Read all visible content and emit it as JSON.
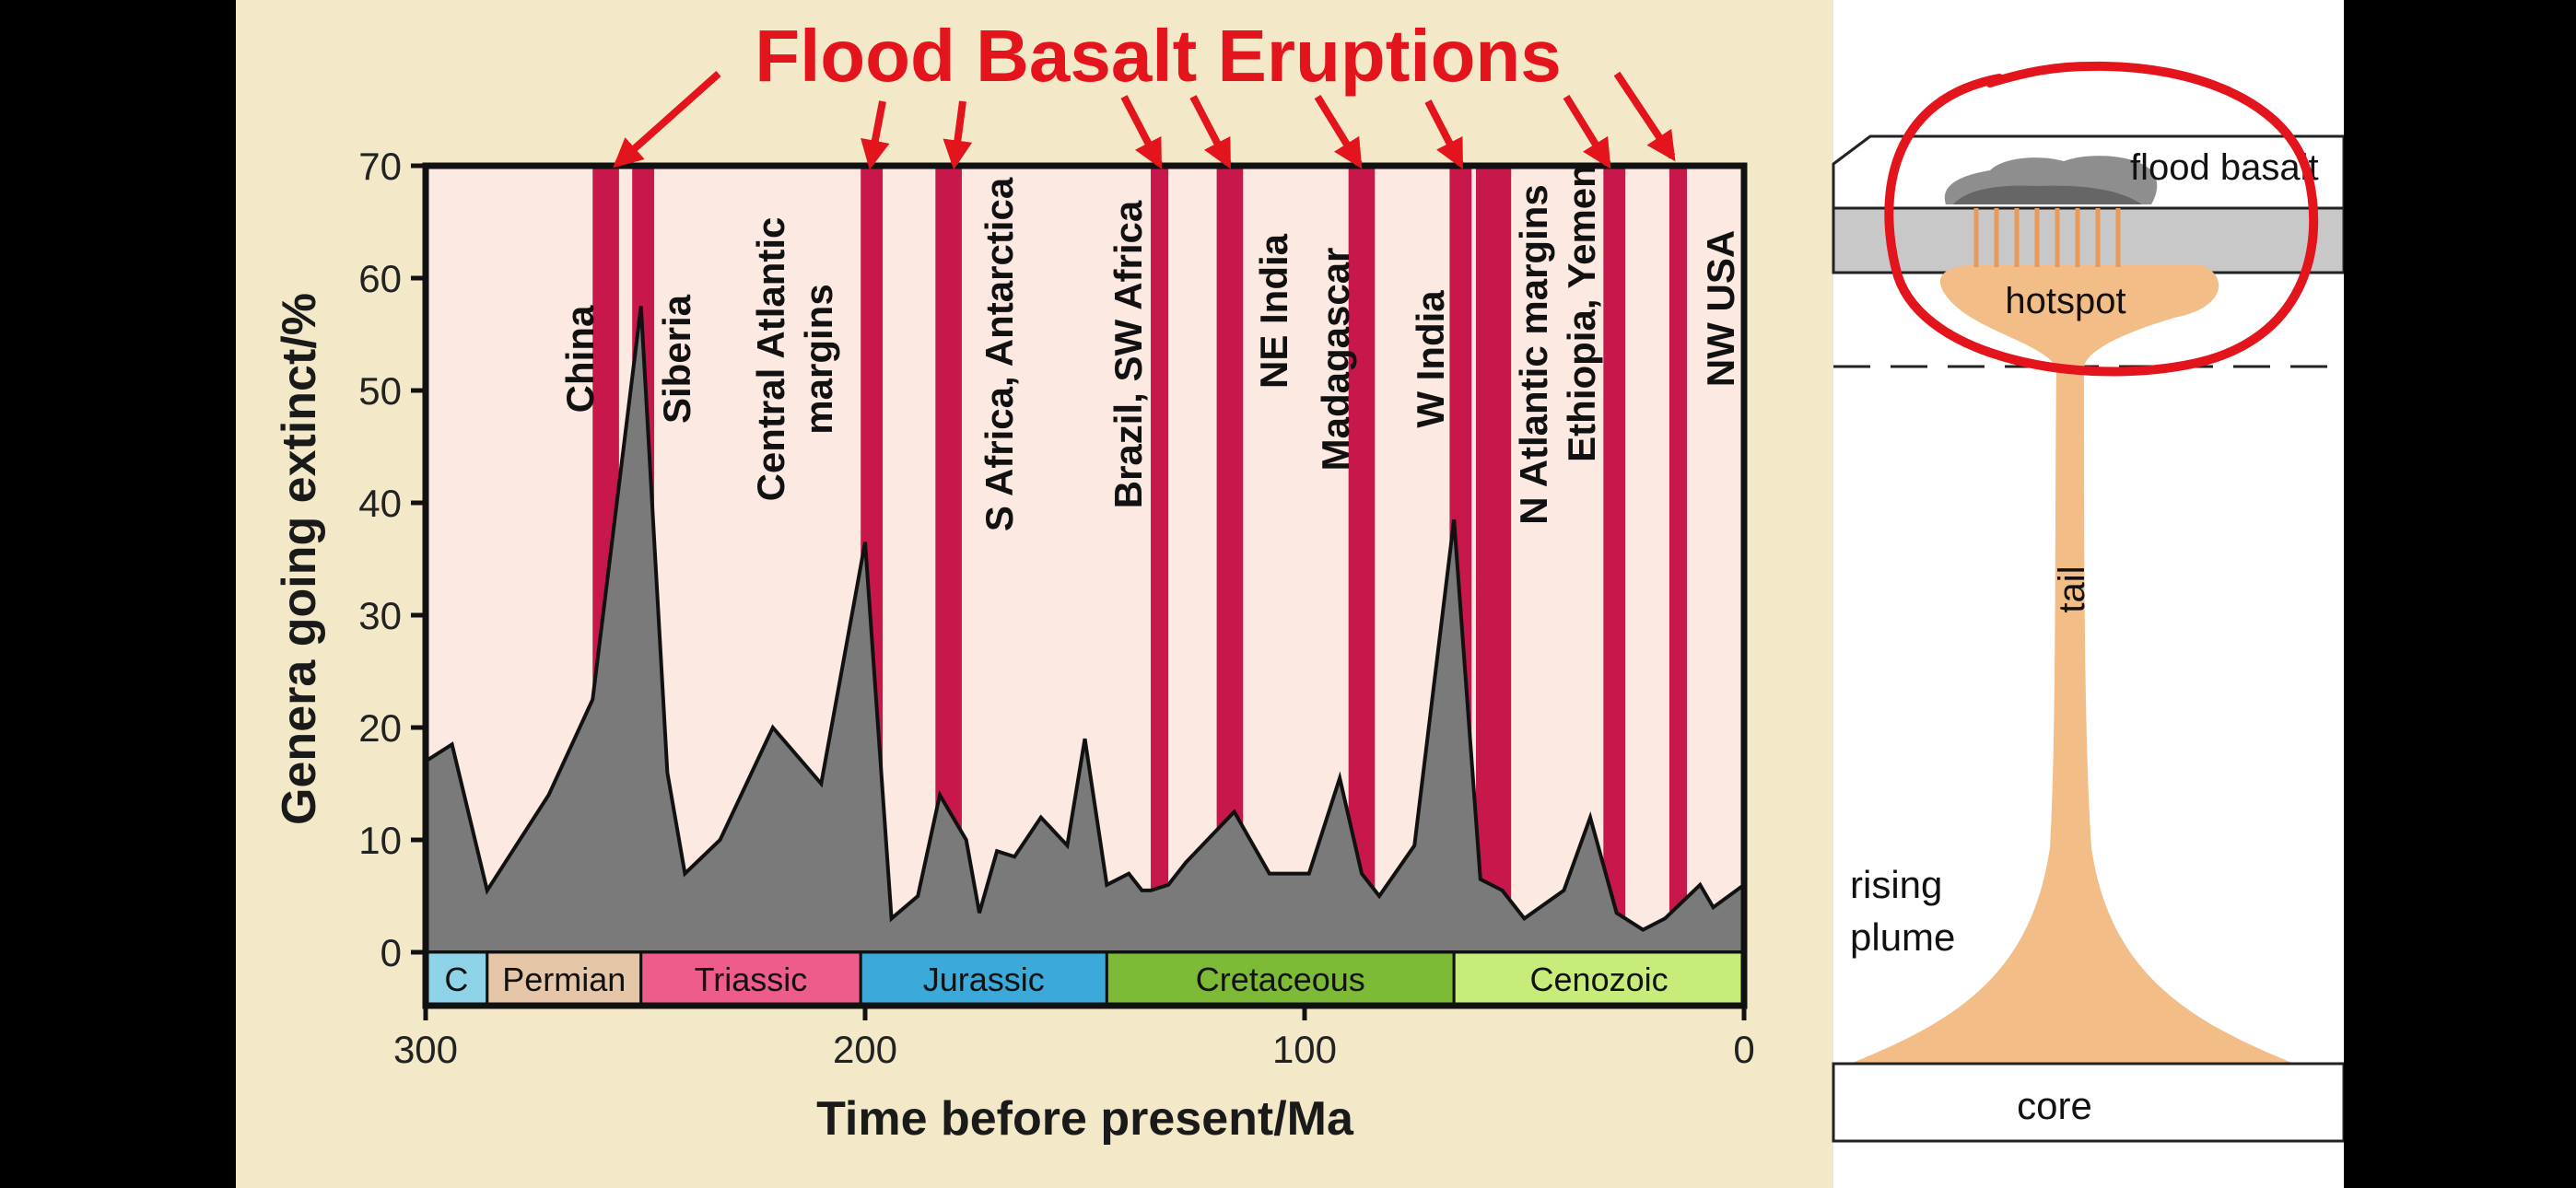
{
  "heading": "Flood Basalt Eruptions",
  "colors": {
    "panel_bg": "#f3e9c9",
    "plot_bg": "#fbe9e2",
    "extinction_fill": "#7a7a7a",
    "eruption_band": "#c8174b",
    "heading_red": "#e3141b",
    "plume": "#f3bd88",
    "lithosphere": "#c8c8c8"
  },
  "chart_data": {
    "type": "area",
    "xlabel": "Time before present/Ma",
    "ylabel": "Genera going extinct/%",
    "xlim": [
      300,
      0
    ],
    "ylim": [
      0,
      70
    ],
    "x_ticks": [
      300,
      200,
      100,
      0
    ],
    "y_ticks": [
      0,
      10,
      20,
      30,
      40,
      50,
      60,
      70
    ],
    "grid": false,
    "series": [
      {
        "x": [
          300,
          294,
          286,
          272,
          262,
          251,
          245,
          241,
          233,
          221,
          210,
          200,
          194,
          188,
          183,
          177,
          174,
          170,
          166,
          160,
          154,
          150,
          145,
          140,
          137,
          135,
          131,
          127,
          116,
          108,
          99,
          92,
          87,
          83,
          75,
          66,
          60,
          55,
          50,
          41,
          35,
          29,
          23,
          18,
          10,
          7,
          0
        ],
        "y": [
          17,
          18.5,
          5.5,
          14,
          22.5,
          57.5,
          16,
          7,
          10,
          20,
          15,
          36.5,
          3,
          5,
          14,
          10,
          3.5,
          9,
          8.5,
          12,
          9.5,
          19,
          6,
          7,
          5.5,
          5.5,
          6,
          8,
          12.5,
          7,
          7,
          15.5,
          7,
          5,
          9.5,
          38.5,
          6.5,
          5.5,
          3,
          5.5,
          12,
          3.5,
          2,
          3,
          6,
          4,
          6
        ]
      }
    ],
    "eruptions": [
      {
        "label": "China",
        "from": 262,
        "to": 256
      },
      {
        "label": "Siberia",
        "from": 253,
        "to": 248
      },
      {
        "label": "Central Atlantic margins",
        "from": 201,
        "to": 196
      },
      {
        "label": "S Africa, Antarctica",
        "from": 184,
        "to": 178
      },
      {
        "label": "Brazil, SW Africa",
        "from": 135,
        "to": 131
      },
      {
        "label": "NE India",
        "from": 120,
        "to": 114
      },
      {
        "label": "Madagascar",
        "from": 90,
        "to": 84
      },
      {
        "label": "W India",
        "from": 67,
        "to": 62
      },
      {
        "label": "N Atlantic margins",
        "from": 61,
        "to": 53
      },
      {
        "label": "Ethiopia, Yemen",
        "from": 32,
        "to": 27
      },
      {
        "label": "NW USA",
        "from": 17,
        "to": 13
      }
    ],
    "periods": [
      {
        "label": "C",
        "from": 300,
        "to": 286,
        "color": "#8fd3e8"
      },
      {
        "label": "Permian",
        "from": 286,
        "to": 251,
        "color": "#e5c6a8"
      },
      {
        "label": "Triassic",
        "from": 251,
        "to": 201,
        "color": "#ee5c8c"
      },
      {
        "label": "Jurassic",
        "from": 201,
        "to": 145,
        "color": "#3ba9d9"
      },
      {
        "label": "Cretaceous",
        "from": 145,
        "to": 66,
        "color": "#7dbb36"
      },
      {
        "label": "Cenozoic",
        "from": 66,
        "to": 0,
        "color": "#c8ec7a"
      }
    ]
  },
  "diagram": {
    "labels": {
      "flood_basalt": "flood basalt",
      "hotspot": "hotspot",
      "tail": "tail",
      "rising": "rising",
      "plume": "plume",
      "core": "core"
    }
  }
}
